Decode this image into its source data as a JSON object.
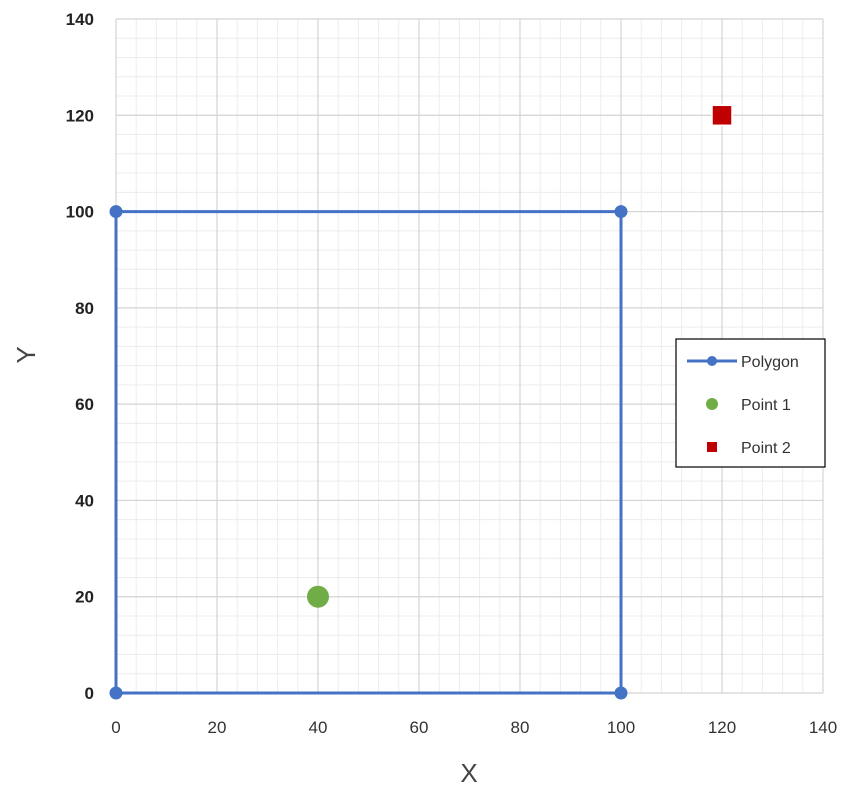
{
  "chart_data": {
    "type": "scatter",
    "title": "",
    "xlabel": "X",
    "ylabel": "Y",
    "xlim": [
      0,
      140
    ],
    "ylim": [
      0,
      140
    ],
    "x_ticks": [
      0,
      20,
      40,
      60,
      80,
      100,
      120,
      140
    ],
    "y_ticks": [
      0,
      20,
      40,
      60,
      80,
      100,
      120,
      140
    ],
    "grid": "major and minor",
    "legend_position": "right",
    "series": [
      {
        "name": "Polygon",
        "marker": "circle",
        "line": true,
        "color": "#4472C4",
        "points": [
          {
            "x": 0,
            "y": 0
          },
          {
            "x": 0,
            "y": 100
          },
          {
            "x": 100,
            "y": 100
          },
          {
            "x": 100,
            "y": 0
          },
          {
            "x": 0,
            "y": 0
          }
        ]
      },
      {
        "name": "Point 1",
        "marker": "circle",
        "line": false,
        "color": "#70AD47",
        "points": [
          {
            "x": 40,
            "y": 20
          }
        ]
      },
      {
        "name": "Point 2",
        "marker": "square",
        "line": false,
        "color": "#C00000",
        "points": [
          {
            "x": 120,
            "y": 120
          }
        ]
      }
    ]
  }
}
